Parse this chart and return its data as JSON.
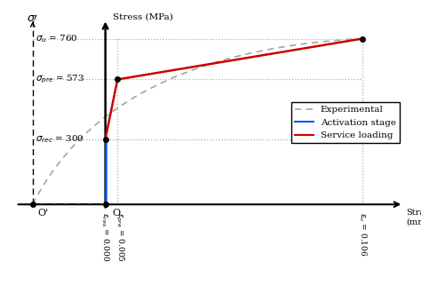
{
  "sigma_rec": 300,
  "sigma_pre": 573,
  "sigma_u": 760,
  "eps_res": 0.0,
  "eps_pre": 0.005,
  "eps_u": 0.106,
  "eps_O_prime": -0.03,
  "O_prime": [
    -0.03,
    0
  ],
  "O": [
    0,
    0
  ],
  "P1": [
    0.0,
    300
  ],
  "P2": [
    0.005,
    573
  ],
  "P3": [
    0.106,
    760
  ],
  "activation_color": "#0055FF",
  "service_color": "#CC0000",
  "experimental_color": "#aaaaaa",
  "xlim": [
    -0.04,
    0.125
  ],
  "ylim": [
    -30,
    870
  ],
  "background_color": "#ffffff"
}
